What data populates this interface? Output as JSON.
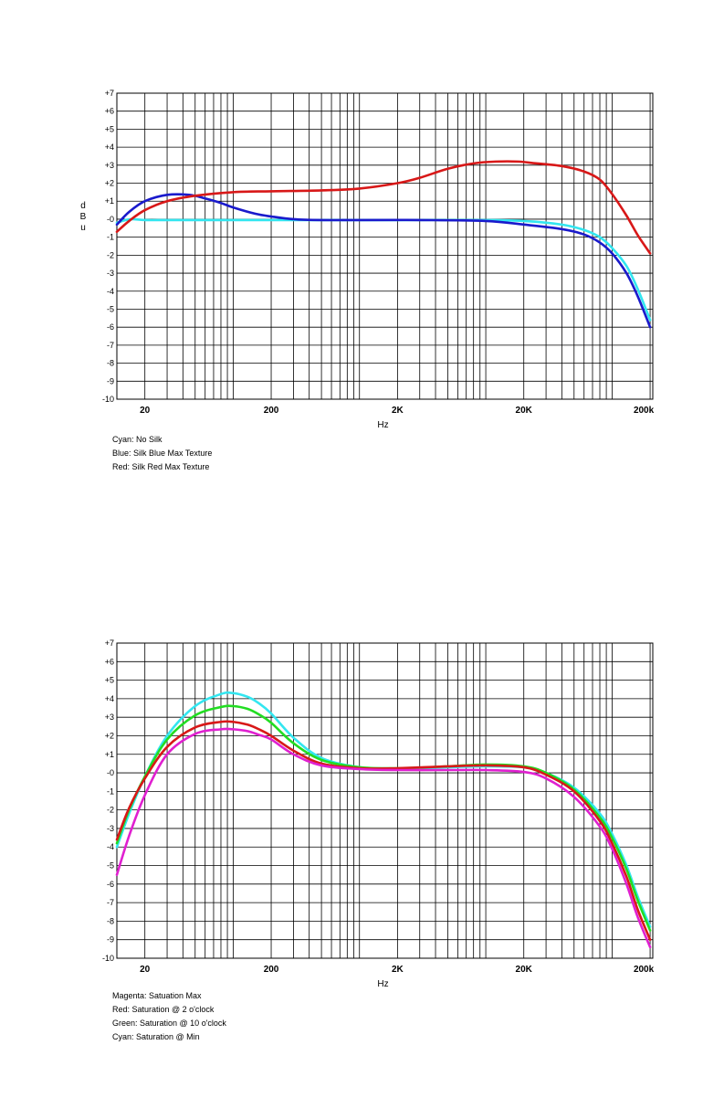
{
  "chart_data": [
    {
      "type": "line",
      "x_scale": "log",
      "xlim": [
        12,
        210000
      ],
      "ylim": [
        -10,
        7
      ],
      "xlabel": "Hz",
      "ylabel": "dBu",
      "ylabel_chars": [
        "d",
        "B",
        "u"
      ],
      "xticks": [
        {
          "value": 20,
          "label": "20"
        },
        {
          "value": 200,
          "label": "200"
        },
        {
          "value": 2000,
          "label": "2K"
        },
        {
          "value": 20000,
          "label": "20K"
        },
        {
          "value": 200000,
          "label": "200k"
        }
      ],
      "yticks": [
        "+7",
        "+6",
        "+5",
        "+4",
        "+3",
        "+2",
        "+1",
        "-0",
        "-1",
        "-2",
        "-3",
        "-4",
        "-5",
        "-6",
        "-7",
        "-8",
        "-9",
        "-10"
      ],
      "grid": true,
      "legend": [
        "Cyan: No Silk",
        "Blue: Silk Blue Max Texture",
        "Red:  Silk Red Max Texture"
      ],
      "series": [
        {
          "color": "#33e6f0",
          "x": [
            12,
            14,
            16,
            20,
            30,
            50,
            100,
            200,
            500,
            2000,
            10000,
            20000,
            40000,
            60000,
            80000,
            100000,
            130000,
            160000,
            200000
          ],
          "y": [
            -0.2,
            -0.05,
            0,
            -0.05,
            -0.05,
            -0.05,
            -0.05,
            -0.05,
            -0.05,
            -0.05,
            -0.05,
            -0.1,
            -0.3,
            -0.6,
            -1.0,
            -1.6,
            -2.6,
            -3.9,
            -5.6
          ]
        },
        {
          "color": "#1a1acc",
          "x": [
            12,
            15,
            20,
            30,
            45,
            60,
            80,
            100,
            150,
            200,
            300,
            500,
            1000,
            3000,
            10000,
            20000,
            40000,
            60000,
            80000,
            100000,
            130000,
            160000,
            200000
          ],
          "y": [
            -0.3,
            0.4,
            1.0,
            1.35,
            1.35,
            1.15,
            0.9,
            0.65,
            0.3,
            0.15,
            0.0,
            -0.05,
            -0.05,
            -0.05,
            -0.1,
            -0.3,
            -0.55,
            -0.85,
            -1.3,
            -1.9,
            -3.0,
            -4.3,
            -6.0
          ]
        },
        {
          "color": "#d81818",
          "x": [
            12,
            15,
            20,
            30,
            50,
            100,
            200,
            500,
            1000,
            2000,
            3000,
            5000,
            8000,
            12000,
            18000,
            25000,
            40000,
            60000,
            80000,
            100000,
            130000,
            160000,
            200000
          ],
          "y": [
            -0.7,
            -0.1,
            0.5,
            1.0,
            1.3,
            1.5,
            1.55,
            1.6,
            1.7,
            2.0,
            2.3,
            2.8,
            3.1,
            3.2,
            3.2,
            3.1,
            2.95,
            2.65,
            2.2,
            1.4,
            0.2,
            -0.9,
            -1.9
          ]
        }
      ]
    },
    {
      "type": "line",
      "x_scale": "log",
      "xlim": [
        12,
        210000
      ],
      "ylim": [
        -10,
        7
      ],
      "xlabel": "Hz",
      "ylabel": "",
      "xticks": [
        {
          "value": 20,
          "label": "20"
        },
        {
          "value": 200,
          "label": "200"
        },
        {
          "value": 2000,
          "label": "2K"
        },
        {
          "value": 20000,
          "label": "20K"
        },
        {
          "value": 200000,
          "label": "200k"
        }
      ],
      "yticks": [
        "+7",
        "+6",
        "+5",
        "+4",
        "+3",
        "+2",
        "+1",
        "-0",
        "-1",
        "-2",
        "-3",
        "-4",
        "-5",
        "-6",
        "-7",
        "-8",
        "-9",
        "-10"
      ],
      "grid": true,
      "legend": [
        "Magenta: Satuation Max",
        "Red: Saturation @ 2 o'clock",
        "Green: Saturation @ 10 o'clock",
        "Cyan: Saturation @ Min"
      ],
      "series": [
        {
          "color": "#33e6f0",
          "x": [
            12,
            15,
            20,
            30,
            50,
            80,
            100,
            130,
            160,
            200,
            300,
            500,
            1000,
            2000,
            5000,
            10000,
            20000,
            30000,
            50000,
            80000,
            100000,
            130000,
            160000,
            200000
          ],
          "y": [
            -4.0,
            -2.2,
            -0.2,
            2.0,
            3.6,
            4.25,
            4.3,
            4.1,
            3.75,
            3.2,
            1.9,
            0.8,
            0.3,
            0.2,
            0.3,
            0.35,
            0.3,
            0.0,
            -0.8,
            -2.2,
            -3.3,
            -5.0,
            -6.7,
            -8.3
          ]
        },
        {
          "color": "#22dd22",
          "x": [
            12,
            15,
            20,
            30,
            50,
            80,
            100,
            130,
            160,
            200,
            300,
            500,
            1000,
            2000,
            5000,
            10000,
            20000,
            30000,
            50000,
            80000,
            100000,
            130000,
            160000,
            200000
          ],
          "y": [
            -3.8,
            -2.0,
            -0.2,
            1.8,
            3.1,
            3.55,
            3.6,
            3.45,
            3.15,
            2.7,
            1.6,
            0.7,
            0.3,
            0.25,
            0.35,
            0.45,
            0.35,
            0.0,
            -0.9,
            -2.4,
            -3.5,
            -5.2,
            -6.9,
            -8.5
          ]
        },
        {
          "color": "#d81818",
          "x": [
            12,
            15,
            20,
            30,
            50,
            80,
            100,
            130,
            160,
            200,
            300,
            500,
            1000,
            2000,
            5000,
            10000,
            20000,
            30000,
            50000,
            80000,
            100000,
            130000,
            160000,
            200000
          ],
          "y": [
            -3.6,
            -1.9,
            -0.3,
            1.4,
            2.45,
            2.75,
            2.75,
            2.6,
            2.35,
            2.0,
            1.2,
            0.5,
            0.25,
            0.25,
            0.35,
            0.4,
            0.3,
            -0.1,
            -1.0,
            -2.6,
            -3.8,
            -5.6,
            -7.4,
            -9.0
          ]
        },
        {
          "color": "#e020d0",
          "x": [
            12,
            15,
            20,
            30,
            50,
            80,
            100,
            130,
            160,
            200,
            300,
            500,
            1000,
            2000,
            5000,
            10000,
            20000,
            30000,
            50000,
            80000,
            100000,
            130000,
            160000,
            200000
          ],
          "y": [
            -5.5,
            -3.4,
            -1.2,
            1.0,
            2.1,
            2.35,
            2.35,
            2.25,
            2.05,
            1.8,
            1.0,
            0.4,
            0.2,
            0.15,
            0.15,
            0.15,
            0.05,
            -0.3,
            -1.3,
            -2.9,
            -4.1,
            -6.0,
            -7.8,
            -9.4
          ]
        }
      ]
    }
  ]
}
